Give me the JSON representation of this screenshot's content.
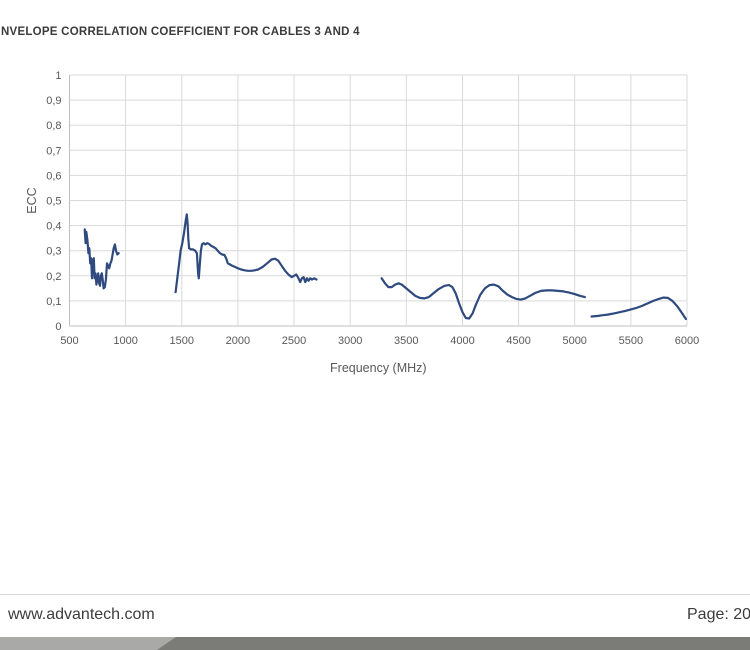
{
  "header": {
    "title": "NVELOPE CORRELATION COEFFICIENT FOR CABLES 3 AND 4"
  },
  "chart_data": {
    "type": "line",
    "title": "NVELOPE CORRELATION COEFFICIENT FOR CABLES 3 AND 4",
    "xlabel": "Frequency (MHz)",
    "ylabel": "ECC",
    "xlim": [
      500,
      6000
    ],
    "ylim": [
      0,
      1
    ],
    "grid": true,
    "legend": "none",
    "xticks": {
      "values": [
        500,
        1000,
        1500,
        2000,
        2500,
        3000,
        3500,
        4000,
        4500,
        5000,
        5500,
        6000
      ],
      "labels": [
        "500",
        "1000",
        "1500",
        "2000",
        "2500",
        "3000",
        "3500",
        "4000",
        "4500",
        "5000",
        "5500",
        "6000"
      ]
    },
    "yticks": {
      "values": [
        0,
        0.1,
        0.2,
        0.3,
        0.4,
        0.5,
        0.6,
        0.7,
        0.8,
        0.9,
        1
      ],
      "labels": [
        "0",
        "0,1",
        "0,2",
        "0,3",
        "0,4",
        "0,5",
        "0,6",
        "0,7",
        "0,8",
        "0,9",
        "1"
      ]
    },
    "colors": {
      "grid": "#d9d9d9",
      "axis": "#bfbfbf",
      "ticks": "#595959",
      "series": "#2e4a7e",
      "title": "#3b3b3b"
    },
    "series": [
      {
        "segments": [
          [
            [
              635,
              0.385
            ],
            [
              643,
              0.33
            ],
            [
              650,
              0.375
            ],
            [
              660,
              0.34
            ],
            [
              668,
              0.29
            ],
            [
              676,
              0.31
            ],
            [
              684,
              0.25
            ],
            [
              692,
              0.27
            ],
            [
              700,
              0.19
            ],
            [
              708,
              0.26
            ],
            [
              716,
              0.27
            ],
            [
              724,
              0.19
            ],
            [
              732,
              0.21
            ],
            [
              740,
              0.165
            ],
            [
              748,
              0.19
            ],
            [
              756,
              0.21
            ],
            [
              764,
              0.17
            ],
            [
              772,
              0.16
            ],
            [
              780,
              0.2
            ],
            [
              788,
              0.21
            ],
            [
              796,
              0.185
            ],
            [
              804,
              0.15
            ],
            [
              814,
              0.155
            ],
            [
              824,
              0.185
            ],
            [
              834,
              0.25
            ],
            [
              844,
              0.24
            ],
            [
              854,
              0.23
            ],
            [
              864,
              0.25
            ],
            [
              874,
              0.26
            ],
            [
              884,
              0.285
            ],
            [
              894,
              0.31
            ],
            [
              904,
              0.325
            ],
            [
              914,
              0.3
            ],
            [
              926,
              0.285
            ],
            [
              938,
              0.29
            ]
          ],
          [
            [
              1445,
              0.135
            ],
            [
              1460,
              0.19
            ],
            [
              1475,
              0.245
            ],
            [
              1490,
              0.3
            ],
            [
              1505,
              0.33
            ],
            [
              1520,
              0.37
            ],
            [
              1535,
              0.42
            ],
            [
              1545,
              0.445
            ],
            [
              1552,
              0.41
            ],
            [
              1558,
              0.35
            ],
            [
              1565,
              0.31
            ],
            [
              1580,
              0.305
            ],
            [
              1600,
              0.305
            ],
            [
              1620,
              0.3
            ],
            [
              1635,
              0.29
            ],
            [
              1645,
              0.21
            ],
            [
              1652,
              0.19
            ],
            [
              1660,
              0.24
            ],
            [
              1670,
              0.3
            ],
            [
              1680,
              0.325
            ],
            [
              1695,
              0.33
            ],
            [
              1710,
              0.325
            ],
            [
              1725,
              0.33
            ],
            [
              1740,
              0.328
            ],
            [
              1760,
              0.32
            ],
            [
              1780,
              0.315
            ],
            [
              1800,
              0.31
            ],
            [
              1820,
              0.3
            ],
            [
              1840,
              0.29
            ],
            [
              1860,
              0.285
            ],
            [
              1880,
              0.283
            ],
            [
              1895,
              0.27
            ],
            [
              1910,
              0.25
            ],
            [
              1930,
              0.245
            ],
            [
              1950,
              0.24
            ],
            [
              1975,
              0.235
            ],
            [
              2000,
              0.23
            ],
            [
              2030,
              0.225
            ],
            [
              2060,
              0.222
            ],
            [
              2090,
              0.22
            ],
            [
              2120,
              0.22
            ],
            [
              2150,
              0.222
            ],
            [
              2180,
              0.225
            ],
            [
              2220,
              0.235
            ],
            [
              2260,
              0.25
            ],
            [
              2300,
              0.265
            ],
            [
              2330,
              0.268
            ],
            [
              2360,
              0.26
            ],
            [
              2390,
              0.24
            ],
            [
              2420,
              0.22
            ],
            [
              2450,
              0.205
            ],
            [
              2480,
              0.195
            ],
            [
              2500,
              0.2
            ],
            [
              2520,
              0.205
            ],
            [
              2540,
              0.19
            ],
            [
              2555,
              0.175
            ],
            [
              2570,
              0.19
            ],
            [
              2585,
              0.195
            ],
            [
              2600,
              0.175
            ],
            [
              2615,
              0.19
            ],
            [
              2630,
              0.18
            ],
            [
              2645,
              0.19
            ],
            [
              2660,
              0.185
            ],
            [
              2680,
              0.19
            ],
            [
              2700,
              0.185
            ]
          ],
          [
            [
              3280,
              0.19
            ],
            [
              3310,
              0.17
            ],
            [
              3340,
              0.155
            ],
            [
              3370,
              0.155
            ],
            [
              3400,
              0.165
            ],
            [
              3430,
              0.17
            ],
            [
              3460,
              0.165
            ],
            [
              3500,
              0.15
            ],
            [
              3540,
              0.135
            ],
            [
              3580,
              0.12
            ],
            [
              3620,
              0.112
            ],
            [
              3660,
              0.11
            ],
            [
              3700,
              0.115
            ],
            [
              3740,
              0.13
            ],
            [
              3790,
              0.148
            ],
            [
              3840,
              0.16
            ],
            [
              3880,
              0.163
            ],
            [
              3910,
              0.155
            ],
            [
              3940,
              0.13
            ],
            [
              3970,
              0.09
            ],
            [
              4000,
              0.055
            ],
            [
              4030,
              0.032
            ],
            [
              4060,
              0.03
            ],
            [
              4090,
              0.05
            ],
            [
              4120,
              0.085
            ],
            [
              4160,
              0.125
            ],
            [
              4200,
              0.15
            ],
            [
              4240,
              0.163
            ],
            [
              4280,
              0.165
            ],
            [
              4320,
              0.158
            ],
            [
              4360,
              0.14
            ],
            [
              4400,
              0.125
            ],
            [
              4440,
              0.115
            ],
            [
              4480,
              0.108
            ],
            [
              4520,
              0.105
            ],
            [
              4560,
              0.11
            ],
            [
              4600,
              0.12
            ],
            [
              4650,
              0.132
            ],
            [
              4700,
              0.14
            ],
            [
              4750,
              0.142
            ],
            [
              4800,
              0.142
            ],
            [
              4850,
              0.14
            ],
            [
              4900,
              0.138
            ],
            [
              4950,
              0.133
            ],
            [
              5000,
              0.127
            ],
            [
              5050,
              0.12
            ],
            [
              5090,
              0.115
            ]
          ],
          [
            [
              5150,
              0.038
            ],
            [
              5200,
              0.04
            ],
            [
              5250,
              0.043
            ],
            [
              5300,
              0.046
            ],
            [
              5350,
              0.05
            ],
            [
              5400,
              0.055
            ],
            [
              5450,
              0.06
            ],
            [
              5500,
              0.066
            ],
            [
              5550,
              0.072
            ],
            [
              5600,
              0.08
            ],
            [
              5650,
              0.09
            ],
            [
              5700,
              0.1
            ],
            [
              5750,
              0.108
            ],
            [
              5790,
              0.113
            ],
            [
              5830,
              0.112
            ],
            [
              5870,
              0.1
            ],
            [
              5910,
              0.08
            ],
            [
              5950,
              0.055
            ],
            [
              5990,
              0.028
            ]
          ]
        ]
      }
    ]
  },
  "footer": {
    "website": "www.advantech.com",
    "page_label": "Page: 20"
  },
  "footer_bar": {
    "light_color": "#a9a9a7",
    "dark_color": "#7b7b78"
  }
}
